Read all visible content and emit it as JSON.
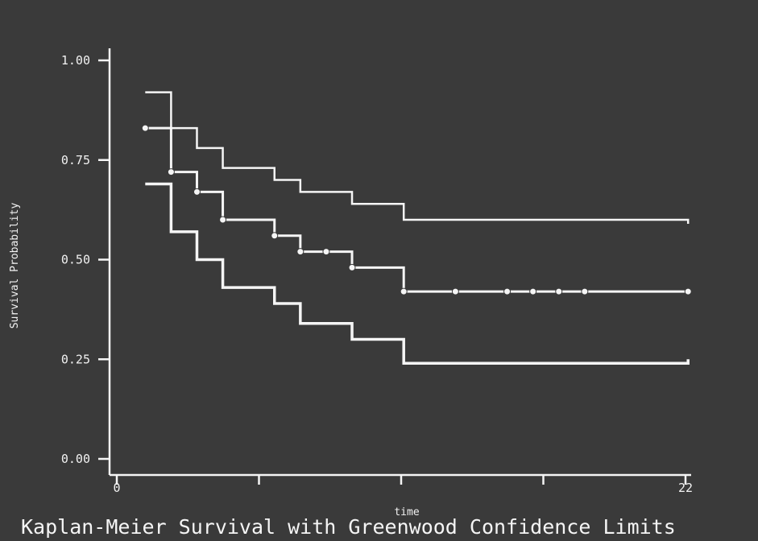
{
  "chart_data": {
    "type": "line",
    "title": "Kaplan-Meier Survival with Greenwood Confidence Limits",
    "xlabel": "time",
    "ylabel": "Survival Probability",
    "xlim": [
      0,
      22
    ],
    "ylim": [
      0,
      1
    ],
    "x_tick_labels": [
      "0",
      "22"
    ],
    "y_tick_labels": [
      "0.00",
      "0.25",
      "0.50",
      "0.75",
      "1.00"
    ],
    "y_ticks": [
      0,
      0.25,
      0.5,
      0.75,
      1.0
    ],
    "grid": false,
    "step": true,
    "colors": {
      "background": "#3a3a3a",
      "lines": "#f5f5f5"
    },
    "series": [
      {
        "name": "",
        "role": "upper-limit",
        "x": [
          1.1,
          2.1,
          3.1,
          4.1,
          6.1,
          7.1,
          9.1,
          11.1,
          22.1
        ],
        "y": [
          0.92,
          0.83,
          0.78,
          0.73,
          0.7,
          0.67,
          0.64,
          0.6,
          0.59
        ]
      },
      {
        "name": "",
        "role": "survival-estimate",
        "x": [
          1.1,
          2.1,
          3.1,
          4.1,
          6.1,
          7.1,
          9.1,
          11.1,
          22.1
        ],
        "y": [
          0.83,
          0.72,
          0.67,
          0.6,
          0.56,
          0.52,
          0.48,
          0.42,
          0.42
        ],
        "markers_x": [
          1.1,
          2.1,
          3.1,
          4.1,
          6.1,
          7.1,
          8.1,
          9.1,
          11.1,
          13.1,
          15.1,
          16.1,
          17.1,
          18.1,
          22.1
        ],
        "markers_y": [
          0.83,
          0.72,
          0.67,
          0.6,
          0.56,
          0.52,
          0.52,
          0.48,
          0.42,
          0.42,
          0.42,
          0.42,
          0.42,
          0.42,
          0.42
        ]
      },
      {
        "name": "",
        "role": "lower-limit",
        "x": [
          1.1,
          2.1,
          3.1,
          4.1,
          6.1,
          7.1,
          9.1,
          11.1,
          22.1
        ],
        "y": [
          0.69,
          0.57,
          0.5,
          0.43,
          0.39,
          0.34,
          0.3,
          0.24,
          0.25
        ]
      }
    ]
  }
}
